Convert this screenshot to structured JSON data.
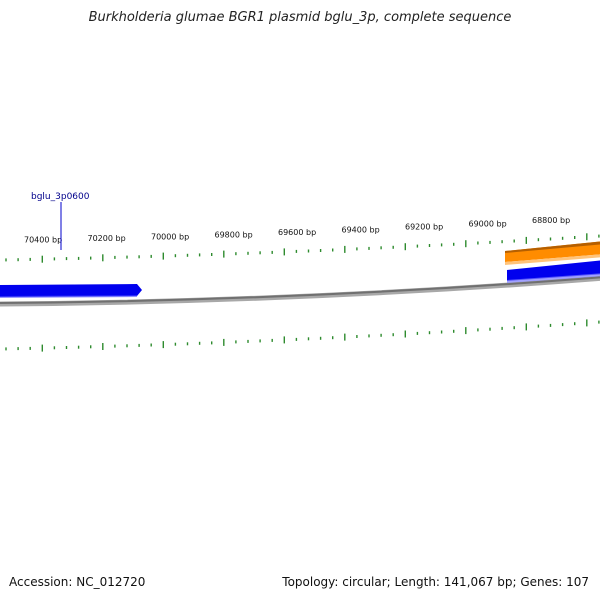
{
  "title": "Burkholderia glumae BGR1 plasmid bglu_3p, complete sequence",
  "footer": {
    "accession": "Accession: NC_012720",
    "summary": "Topology: circular; Length: 141,067 bp; Genes: 107"
  },
  "colors": {
    "backbone": "#808080",
    "tick": "#2e8b2e",
    "forward_gene": "#0000ee",
    "reverse_gene": "#ff8c00",
    "gene_label": "#00008b"
  },
  "ruler": {
    "labels": [
      "70400 bp",
      "70200 bp",
      "70000 bp",
      "69800 bp",
      "69600 bp",
      "69400 bp",
      "69200 bp",
      "69000 bp",
      "68800 bp"
    ]
  },
  "genes": {
    "label": "bglu_3p0600"
  }
}
